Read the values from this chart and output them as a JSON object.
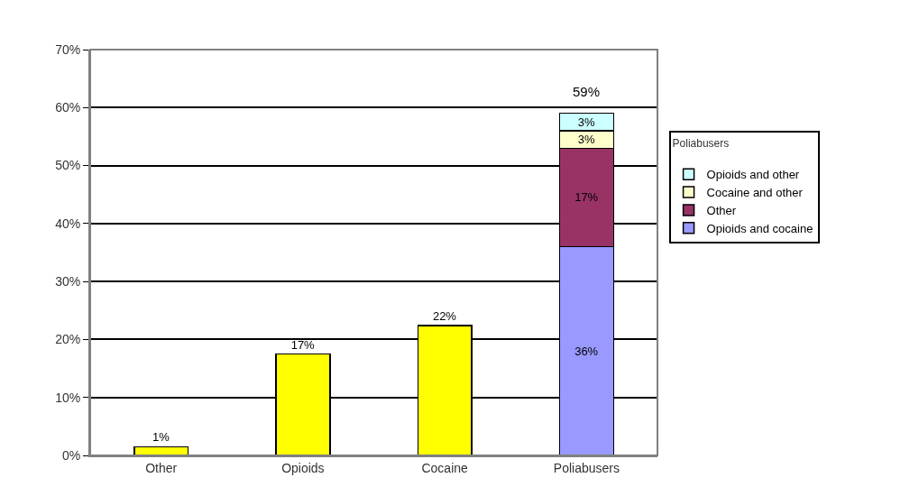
{
  "chart_data": {
    "type": "bar",
    "stacked": true,
    "categories": [
      "Other",
      "Opioids",
      "Cocaine",
      "Poliabusers"
    ],
    "series": [
      {
        "color": "#ffff00",
        "values": [
          1.5,
          17.5,
          22.4,
          null
        ],
        "value_labels": [
          "1%",
          "17%",
          "22%",
          null
        ]
      },
      {
        "name": "Opioids and cocaine",
        "color": "#9999ff",
        "values": [
          null,
          null,
          null,
          36
        ],
        "value_labels": [
          null,
          null,
          null,
          "36%"
        ]
      },
      {
        "name": "Other",
        "color": "#993366",
        "values": [
          null,
          null,
          null,
          17
        ],
        "value_labels": [
          null,
          null,
          null,
          "17%"
        ]
      },
      {
        "name": "Cocaine and other",
        "color": "#ffffcc",
        "values": [
          null,
          null,
          null,
          3
        ],
        "value_labels": [
          null,
          null,
          null,
          "3%"
        ]
      },
      {
        "name": "Opioids and other",
        "color": "#ccffff",
        "values": [
          null,
          null,
          null,
          3
        ],
        "value_labels": [
          null,
          null,
          null,
          "3%"
        ]
      }
    ],
    "totals": [
      null,
      null,
      null,
      "59%"
    ],
    "legend_title": "Poliabusers",
    "legend": "right",
    "grid": "y",
    "ylim": [
      0,
      70
    ],
    "yticks": [
      {
        "value": 0,
        "label": "0%"
      },
      {
        "value": 10,
        "label": "10%"
      },
      {
        "value": 20,
        "label": "20%"
      },
      {
        "value": 30,
        "label": "30%"
      },
      {
        "value": 40,
        "label": "40%"
      },
      {
        "value": 50,
        "label": "50%"
      },
      {
        "value": 60,
        "label": "60%"
      },
      {
        "value": 70,
        "label": "70%"
      }
    ]
  }
}
